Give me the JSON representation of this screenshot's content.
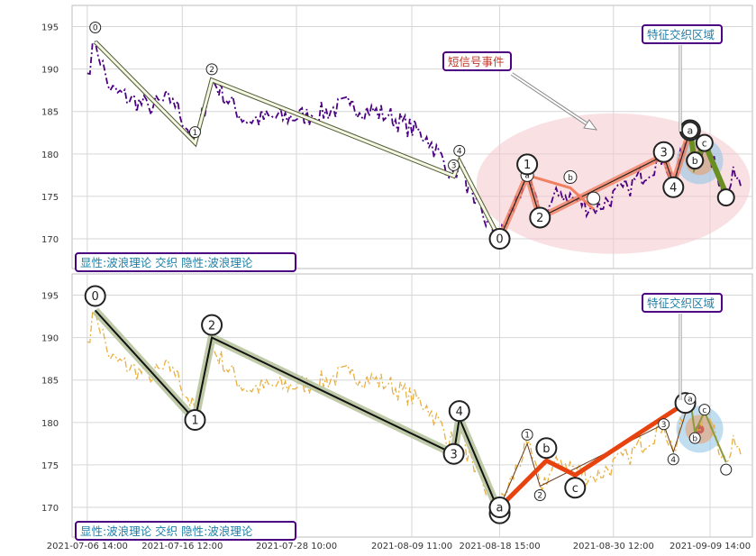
{
  "chart_data": [
    {
      "type": "line",
      "panel": "top",
      "y_ticks": [
        170,
        175,
        180,
        185,
        190,
        195
      ],
      "ylim": [
        166.5,
        197.5
      ],
      "grid": true,
      "colors": {
        "price": "#4b0082",
        "wave": "#556b2f",
        "highlight_ellipse": "#f4c6cc",
        "impulse_fill": "#f08060",
        "corrective": "#6b8e23",
        "label_border": "#4b0082",
        "label_text": "#1e7fa8",
        "short_text": "#c0392b"
      },
      "annotations": {
        "feature_zone": "特征交织区域",
        "short_signal": "短信号事件",
        "footer": "显性:波浪理论 交织 隐性:波浪理论"
      },
      "major_wave": {
        "points": [
          {
            "x": "2021-07-07 10:00",
            "y": 193.2
          },
          {
            "x": "2021-07-17 20:00",
            "y": 181.3
          },
          {
            "x": "2021-07-19 14:00",
            "y": 188.7
          },
          {
            "x": "2021-08-13 20:00",
            "y": 177.4
          },
          {
            "x": "2021-08-14 10:00",
            "y": 179.1
          },
          {
            "x": "2021-08-18 15:00",
            "y": 170.0
          }
        ],
        "labels": [
          "0",
          "1",
          "2",
          "3",
          "4",
          "5"
        ]
      },
      "recent_wave": {
        "points": [
          {
            "x": "2021-08-18 15:00",
            "y": 170.0
          },
          {
            "x": "2021-08-21 12:00",
            "y": 177.5
          },
          {
            "x": "2021-08-22 20:00",
            "y": 172.5
          },
          {
            "x": "2021-09-04 18:00",
            "y": 179.8
          },
          {
            "x": "2021-09-05 18:00",
            "y": 176.5
          },
          {
            "x": "2021-09-07 12:00",
            "y": 182.8
          }
        ],
        "labels": [
          "0",
          "1",
          "2",
          "3",
          "4",
          "5"
        ]
      },
      "minor_wave": {
        "points": [
          {
            "x": "2021-08-21 12:00",
            "y": 177.5
          },
          {
            "x": "2021-08-26 00:00",
            "y": 176.0
          },
          {
            "x": "2021-08-28 10:00",
            "y": 173.5
          }
        ],
        "labels": [
          "a",
          "b"
        ]
      },
      "corrective": {
        "points": [
          {
            "x": "2021-09-07 12:00",
            "y": 182.8
          },
          {
            "x": "2021-09-08 00:00",
            "y": 178.8
          },
          {
            "x": "2021-09-09 00:00",
            "y": 181.3
          },
          {
            "x": "2021-09-11 06:00",
            "y": 175.3
          }
        ],
        "labels": [
          "a",
          "b",
          "c"
        ]
      }
    },
    {
      "type": "line",
      "panel": "bottom",
      "y_ticks": [
        170,
        175,
        180,
        185,
        190,
        195
      ],
      "ylim": [
        166.5,
        197.5
      ],
      "x_ticks": [
        "2021-07-06 14:00",
        "2021-07-16 12:00",
        "2021-07-28 10:00",
        "2021-08-09 11:00",
        "2021-08-18 15:00",
        "2021-08-30 12:00",
        "2021-09-09 14:00"
      ],
      "grid": true,
      "colors": {
        "price": "#e8b040",
        "wave": "#000000",
        "band": "#b8c4a0",
        "impulse": "#e8420e",
        "label_border": "#4b0082",
        "label_text": "#1e7fa8"
      },
      "annotations": {
        "feature_zone": "特征交织区域",
        "footer": "显性:波浪理论 交织 隐性:波浪理论"
      },
      "major_wave": {
        "points": [
          {
            "x": "2021-07-07 10:00",
            "y": 193.2
          },
          {
            "x": "2021-07-17 20:00",
            "y": 180.3
          },
          {
            "x": "2021-07-19 14:00",
            "y": 190.0
          },
          {
            "x": "2021-08-13 20:00",
            "y": 176.3
          },
          {
            "x": "2021-08-14 10:00",
            "y": 180.5
          },
          {
            "x": "2021-08-18 15:00",
            "y": 169.3
          }
        ],
        "labels": [
          "0",
          "1",
          "2",
          "3",
          "4",
          "5"
        ]
      },
      "impulse_abc": {
        "points": [
          {
            "x": "2021-08-18 15:00",
            "y": 170.0
          },
          {
            "x": "2021-08-23 12:00",
            "y": 175.5
          },
          {
            "x": "2021-08-26 12:00",
            "y": 173.8
          },
          {
            "x": "2021-09-07 00:00",
            "y": 182.3
          }
        ],
        "labels": [
          "a",
          "b",
          "c"
        ]
      },
      "minor_wave": {
        "points": [
          {
            "x": "2021-08-18 15:00",
            "y": 170.0
          },
          {
            "x": "2021-08-21 12:00",
            "y": 177.5
          },
          {
            "x": "2021-08-22 20:00",
            "y": 172.5
          },
          {
            "x": "2021-09-04 18:00",
            "y": 179.8
          },
          {
            "x": "2021-09-05 18:00",
            "y": 176.5
          },
          {
            "x": "2021-09-07 12:00",
            "y": 182.8
          }
        ],
        "labels": [
          "0",
          "1",
          "2",
          "3",
          "4",
          "5"
        ]
      },
      "corrective": {
        "points": [
          {
            "x": "2021-09-07 12:00",
            "y": 182.8
          },
          {
            "x": "2021-09-08 00:00",
            "y": 178.8
          },
          {
            "x": "2021-09-09 00:00",
            "y": 181.3
          },
          {
            "x": "2021-09-11 06:00",
            "y": 175.3
          }
        ],
        "labels": [
          "a",
          "b",
          "c"
        ]
      }
    }
  ]
}
